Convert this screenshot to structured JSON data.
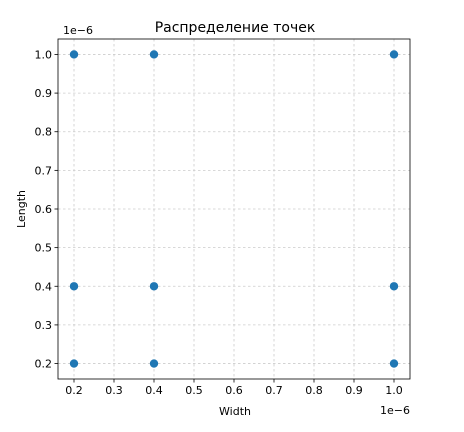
{
  "chart_data": {
    "type": "scatter",
    "title": "Распределение точек",
    "xlabel": "Width",
    "ylabel": "Length",
    "x_offset_text": "1e−6",
    "y_offset_text": "1e−6",
    "xlim": [
      0.16,
      1.04
    ],
    "ylim": [
      0.16,
      1.04
    ],
    "x_ticks": [
      0.2,
      0.3,
      0.4,
      0.5,
      0.6,
      0.7,
      0.8,
      0.9,
      1.0
    ],
    "y_ticks": [
      0.2,
      0.3,
      0.4,
      0.5,
      0.6,
      0.7,
      0.8,
      0.9,
      1.0
    ],
    "x_tick_labels": [
      "0.2",
      "0.3",
      "0.4",
      "0.5",
      "0.6",
      "0.7",
      "0.8",
      "0.9",
      "1.0"
    ],
    "y_tick_labels": [
      "0.2",
      "0.3",
      "0.4",
      "0.5",
      "0.6",
      "0.7",
      "0.8",
      "0.9",
      "1.0"
    ],
    "grid": true,
    "marker_color": "#1f77b4",
    "series": [
      {
        "points": [
          [
            0.2,
            0.2
          ],
          [
            0.2,
            0.4
          ],
          [
            0.2,
            1.0
          ],
          [
            0.4,
            0.2
          ],
          [
            0.4,
            0.4
          ],
          [
            0.4,
            1.0
          ],
          [
            1.0,
            0.2
          ],
          [
            1.0,
            0.4
          ],
          [
            1.0,
            1.0
          ]
        ]
      }
    ]
  }
}
